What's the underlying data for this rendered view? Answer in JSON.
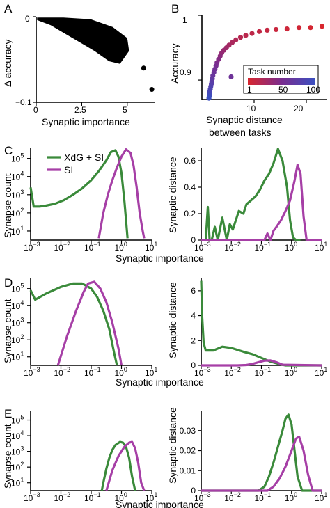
{
  "panel_labels": [
    "A",
    "B",
    "C",
    "D",
    "E"
  ],
  "colors": {
    "xdg_si": "#3a8a3a",
    "si": "#a63fa6",
    "scatter": "#000000"
  },
  "chart_data": [
    {
      "id": "A",
      "type": "scatter",
      "xlabel": "Synaptic importance",
      "ylabel": "Δ accuracy",
      "xlim": [
        0,
        6.5
      ],
      "ylim": [
        -0.1,
        0
      ],
      "xticks": [
        0,
        2.5,
        5
      ],
      "xtick_labels": [
        "0",
        "2.5",
        "5"
      ],
      "yticks": [
        0,
        -0.1
      ],
      "ytick_labels": [
        "0",
        "−0.1"
      ],
      "outliers": [
        [
          5.9,
          -0.06
        ],
        [
          6.35,
          -0.085
        ]
      ]
    },
    {
      "id": "B",
      "type": "scatter",
      "xlabel": "Synaptic distance between tasks",
      "xlabel_lines": [
        "Synaptic distance",
        "between tasks"
      ],
      "ylabel": "Accuracy",
      "xlim": [
        0,
        24
      ],
      "ylim": [
        0.87,
        1.0
      ],
      "xticks": [
        10,
        20
      ],
      "xtick_labels": [
        "10",
        "20"
      ],
      "yticks": [
        0.9,
        1.0
      ],
      "ytick_labels": [
        "0.9",
        "1"
      ],
      "colorbar": {
        "title": "Task number",
        "ticks": [
          "1",
          "50",
          "100"
        ]
      },
      "points": [
        [
          23.0,
          0.983,
          1
        ],
        [
          20.8,
          0.981,
          3
        ],
        [
          18.6,
          0.981,
          5
        ],
        [
          16.3,
          0.979,
          7
        ],
        [
          14.2,
          0.978,
          9
        ],
        [
          12.5,
          0.977,
          11
        ],
        [
          11.0,
          0.975,
          13
        ],
        [
          9.6,
          0.972,
          15
        ],
        [
          8.4,
          0.969,
          17
        ],
        [
          7.4,
          0.966,
          19
        ],
        [
          6.5,
          0.962,
          22
        ],
        [
          5.8,
          0.958,
          25
        ],
        [
          5.2,
          0.954,
          28
        ],
        [
          4.7,
          0.95,
          31
        ],
        [
          4.2,
          0.946,
          34
        ],
        [
          3.8,
          0.942,
          37
        ],
        [
          3.5,
          0.937,
          41
        ],
        [
          3.2,
          0.932,
          45
        ],
        [
          2.9,
          0.927,
          49
        ],
        [
          2.7,
          0.922,
          53
        ],
        [
          2.5,
          0.917,
          57
        ],
        [
          2.3,
          0.912,
          61
        ],
        [
          2.1,
          0.907,
          65
        ],
        [
          2.0,
          0.902,
          69
        ],
        [
          1.9,
          0.898,
          73
        ],
        [
          1.8,
          0.894,
          77
        ],
        [
          1.7,
          0.89,
          81
        ],
        [
          1.6,
          0.886,
          85
        ],
        [
          1.5,
          0.882,
          89
        ],
        [
          1.45,
          0.878,
          93
        ],
        [
          1.4,
          0.875,
          97
        ],
        [
          5.6,
          0.905,
          60
        ],
        [
          1.35,
          0.872,
          100
        ]
      ]
    },
    {
      "id": "C-left",
      "type": "line",
      "xscale": "log",
      "yscale": "log",
      "xlabel": "Synaptic importance",
      "ylabel": "Synapse count",
      "xlim": [
        -3,
        1
      ],
      "ylim": [
        0.5,
        5.6
      ],
      "xtick_labels": [
        "10^-3",
        "10^-2",
        "10^-1",
        "10^0",
        "10^1"
      ],
      "ytick_labels": [
        "10^1",
        "10^2",
        "10^3",
        "10^4",
        "10^5"
      ],
      "legend": [
        "XdG + SI",
        "SI"
      ],
      "series": [
        {
          "name": "XdG + SI",
          "x": [
            -3,
            -2.9,
            -2.7,
            -2.5,
            -2.2,
            -1.9,
            -1.6,
            -1.3,
            -1.0,
            -0.75,
            -0.5,
            -0.35,
            -0.2,
            -0.1,
            0.0,
            0.1,
            0.2
          ],
          "y": [
            3.4,
            2.35,
            2.35,
            2.4,
            2.5,
            2.7,
            3.0,
            3.35,
            3.8,
            4.3,
            4.9,
            5.35,
            5.45,
            5.1,
            4.2,
            2.6,
            0.6
          ]
        },
        {
          "name": "SI",
          "x": [
            -0.75,
            -0.6,
            -0.45,
            -0.3,
            -0.15,
            0.0,
            0.15,
            0.3,
            0.4,
            0.5,
            0.6,
            0.7,
            0.75
          ],
          "y": [
            0.6,
            2.0,
            3.0,
            3.8,
            4.5,
            5.1,
            5.5,
            5.3,
            4.6,
            3.4,
            2.0,
            1.0,
            0.6
          ]
        }
      ]
    },
    {
      "id": "C-right",
      "type": "line",
      "xscale": "log",
      "ylabel": "Synaptic distance",
      "xlim": [
        -3,
        1
      ],
      "ylim": [
        0,
        0.7
      ],
      "xtick_labels": [
        "10^-3",
        "10^-2",
        "10^-1",
        "10^0",
        "10^1"
      ],
      "yticks": [
        0,
        0.2,
        0.4,
        0.6
      ],
      "ytick_labels": [
        "0",
        "0.2",
        "0.4",
        "0.6"
      ],
      "series": [
        {
          "name": "XdG + SI",
          "x": [
            -3,
            -2.85,
            -2.78,
            -2.72,
            -2.65,
            -2.55,
            -2.45,
            -2.3,
            -2.15,
            -2.05,
            -1.95,
            -1.85,
            -1.75,
            -1.6,
            -1.5,
            -1.35,
            -1.2,
            -1.05,
            -0.9,
            -0.75,
            -0.6,
            -0.45,
            -0.3,
            -0.15,
            -0.05,
            0.05,
            0.15,
            0.3
          ],
          "y": [
            0.0,
            0.0,
            0.25,
            0.0,
            0.0,
            0.1,
            0.0,
            0.17,
            0.0,
            0.12,
            0.08,
            0.15,
            0.22,
            0.2,
            0.27,
            0.3,
            0.33,
            0.38,
            0.45,
            0.5,
            0.58,
            0.69,
            0.6,
            0.4,
            0.15,
            0.02,
            0.0,
            0.0
          ]
        },
        {
          "name": "SI",
          "x": [
            -3,
            -1.2,
            -0.9,
            -0.8,
            -0.7,
            -0.6,
            -0.5,
            -0.35,
            -0.2,
            -0.05,
            0.1,
            0.2,
            0.3,
            0.4,
            0.5,
            1.0
          ],
          "y": [
            0.0,
            0.0,
            0.0,
            0.05,
            0.0,
            0.07,
            0.1,
            0.15,
            0.22,
            0.3,
            0.45,
            0.57,
            0.5,
            0.18,
            0.0,
            0.0
          ]
        }
      ]
    },
    {
      "id": "D-left",
      "type": "line",
      "xscale": "log",
      "yscale": "log",
      "xlabel": "Synaptic importance",
      "ylabel": "Synapse count",
      "xlim": [
        -3,
        1
      ],
      "ylim": [
        0.5,
        5.6
      ],
      "xtick_labels": [
        "10^-3",
        "10^-2",
        "10^-1",
        "10^0",
        "10^1"
      ],
      "ytick_labels": [
        "10^1",
        "10^2",
        "10^3",
        "10^4",
        "10^5"
      ],
      "series": [
        {
          "name": "XdG + SI",
          "x": [
            -3,
            -2.85,
            -2.5,
            -2.0,
            -1.6,
            -1.3,
            -1.0,
            -0.8,
            -0.6,
            -0.4,
            -0.25,
            -0.15
          ],
          "y": [
            4.9,
            4.35,
            4.7,
            5.1,
            5.3,
            5.3,
            5.0,
            4.5,
            3.7,
            2.6,
            1.3,
            0.2
          ]
        },
        {
          "name": "SI",
          "x": [
            -2.1,
            -1.8,
            -1.5,
            -1.25,
            -1.1,
            -0.9,
            -0.7,
            -0.5,
            -0.3,
            -0.1,
            0.0
          ],
          "y": [
            0.5,
            2.2,
            3.7,
            4.8,
            5.3,
            5.4,
            5.0,
            4.2,
            3.0,
            1.5,
            0.3
          ]
        }
      ]
    },
    {
      "id": "D-right",
      "type": "line",
      "xscale": "log",
      "ylabel": "Synaptic distance",
      "xlim": [
        -3,
        1
      ],
      "ylim": [
        0,
        7
      ],
      "xtick_labels": [
        "10^-3",
        "10^-2",
        "10^-1",
        "10^0",
        "10^1"
      ],
      "yticks": [
        0,
        2,
        4,
        6
      ],
      "ytick_labels": [
        "0",
        "2",
        "4",
        "6"
      ],
      "series": [
        {
          "name": "XdG + SI",
          "x": [
            -3,
            -2.97,
            -2.92,
            -2.85,
            -2.6,
            -2.3,
            -2.0,
            -1.6,
            -1.3,
            -1.0,
            -0.7,
            -0.4,
            -0.2,
            0.0,
            0.3,
            1.0
          ],
          "y": [
            6.8,
            4.0,
            1.8,
            1.2,
            1.2,
            1.5,
            1.4,
            1.1,
            0.9,
            0.6,
            0.3,
            0.1,
            0.0,
            0.0,
            0.0,
            0.0
          ]
        },
        {
          "name": "SI",
          "x": [
            -3,
            -1.8,
            -1.5,
            -1.3,
            -1.1,
            -0.9,
            -0.7,
            -0.5,
            -0.3,
            1.0
          ],
          "y": [
            0.0,
            0.0,
            0.03,
            0.12,
            0.25,
            0.38,
            0.4,
            0.25,
            0.05,
            0.0
          ]
        }
      ]
    },
    {
      "id": "E-left",
      "type": "line",
      "xscale": "log",
      "yscale": "log",
      "xlabel": "Synaptic importance",
      "ylabel": "Synapse count",
      "xlim": [
        -3,
        1
      ],
      "ylim": [
        0.5,
        5.6
      ],
      "xtick_labels": [
        "10^-3",
        "10^-2",
        "10^-1",
        "10^0",
        "10^1"
      ],
      "ytick_labels": [
        "10^1",
        "10^2",
        "10^3",
        "10^4",
        "10^5"
      ],
      "series": [
        {
          "name": "XdG + SI",
          "x": [
            -0.65,
            -0.6,
            -0.5,
            -0.4,
            -0.3,
            -0.2,
            -0.05,
            0.05,
            0.15,
            0.25,
            0.35,
            0.45
          ],
          "y": [
            0.3,
            1.0,
            1.9,
            2.6,
            3.1,
            3.4,
            3.6,
            3.55,
            3.3,
            2.6,
            1.4,
            0.2
          ]
        },
        {
          "name": "SI",
          "x": [
            -0.5,
            -0.3,
            -0.1,
            0.1,
            0.25,
            0.35,
            0.45,
            0.55,
            0.65,
            0.75
          ],
          "y": [
            0.3,
            1.8,
            2.7,
            3.3,
            3.55,
            3.6,
            3.2,
            2.3,
            1.0,
            0.1
          ]
        }
      ]
    },
    {
      "id": "E-right",
      "type": "line",
      "xscale": "log",
      "ylabel": "Synaptic distance",
      "xlim": [
        -3,
        1
      ],
      "ylim": [
        0,
        0.04
      ],
      "xtick_labels": [
        "10^-3",
        "10^-2",
        "10^-1",
        "10^0",
        "10^1"
      ],
      "yticks": [
        0,
        0.01,
        0.02,
        0.03
      ],
      "ytick_labels": [
        "0",
        "0.01",
        "0.02",
        "0.03"
      ],
      "series": [
        {
          "name": "XdG + SI",
          "x": [
            -3,
            -1.1,
            -0.9,
            -0.75,
            -0.6,
            -0.45,
            -0.3,
            -0.2,
            -0.1,
            0.0,
            0.1,
            0.2,
            0.35,
            1.0
          ],
          "y": [
            0.0,
            0.0,
            0.002,
            0.007,
            0.014,
            0.022,
            0.03,
            0.036,
            0.038,
            0.033,
            0.02,
            0.007,
            0.0,
            0.0
          ]
        },
        {
          "name": "SI",
          "x": [
            -3,
            -0.8,
            -0.6,
            -0.4,
            -0.2,
            0.0,
            0.15,
            0.25,
            0.4,
            0.55,
            0.7,
            1.0
          ],
          "y": [
            0.0,
            0.0,
            0.002,
            0.006,
            0.012,
            0.02,
            0.026,
            0.027,
            0.02,
            0.008,
            0.0,
            0.0
          ]
        }
      ]
    }
  ]
}
